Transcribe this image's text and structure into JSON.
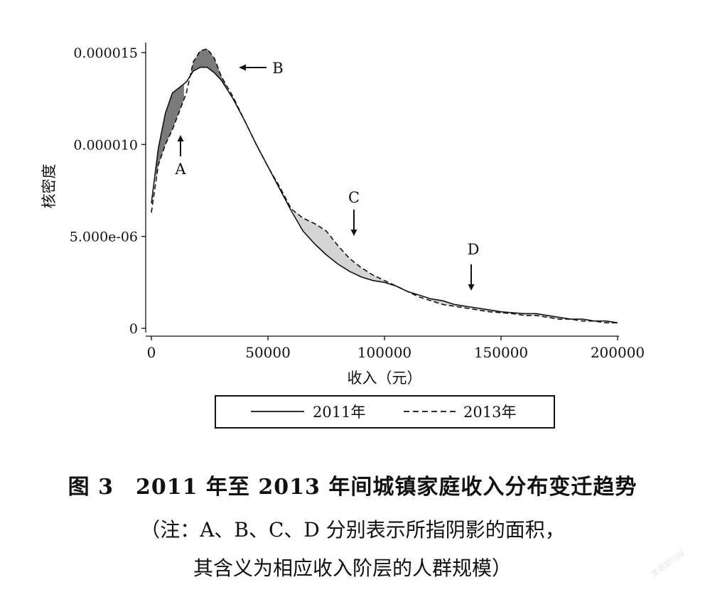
{
  "chart_data": {
    "type": "line",
    "xlabel": "收入（元）",
    "ylabel": "核密度",
    "xlim": [
      0,
      200000
    ],
    "ylim": [
      0,
      1.5e-05
    ],
    "x_ticks": [
      0,
      50000,
      100000,
      150000,
      200000
    ],
    "x_tick_labels": [
      "0",
      "50000",
      "100000",
      "150000",
      "200000"
    ],
    "y_ticks": [
      0,
      5e-06,
      1e-05,
      1.5e-05
    ],
    "y_tick_labels": [
      "0",
      "5.000e-06",
      "0.000010",
      "0.000015"
    ],
    "grid": false,
    "legend_position": "bottom",
    "series": [
      {
        "name": "2011年",
        "style": "solid",
        "x": [
          0,
          3000,
          6000,
          9000,
          12000,
          15000,
          18000,
          21000,
          24000,
          27000,
          30000,
          35000,
          40000,
          45000,
          50000,
          55000,
          60000,
          65000,
          70000,
          75000,
          80000,
          85000,
          90000,
          95000,
          100000,
          105000,
          110000,
          115000,
          120000,
          125000,
          130000,
          135000,
          140000,
          145000,
          150000,
          155000,
          160000,
          165000,
          170000,
          175000,
          180000,
          185000,
          190000,
          195000,
          200000
        ],
        "y": [
          6.8e-06,
          9.8e-06,
          1.17e-05,
          1.28e-05,
          1.31e-05,
          1.34e-05,
          1.4e-05,
          1.42e-05,
          1.42e-05,
          1.39e-05,
          1.35e-05,
          1.25e-05,
          1.13e-05,
          1e-05,
          8.8e-06,
          7.6e-06,
          6.4e-06,
          5.3e-06,
          4.6e-06,
          4e-06,
          3.5e-06,
          3.1e-06,
          2.8e-06,
          2.6e-06,
          2.5e-06,
          2.3e-06,
          2e-06,
          1.8e-06,
          1.6e-06,
          1.5e-06,
          1.3e-06,
          1.2e-06,
          1.1e-06,
          1e-06,
          9e-07,
          8.5e-07,
          8e-07,
          8e-07,
          7e-07,
          6e-07,
          5e-07,
          5e-07,
          4e-07,
          4e-07,
          3e-07
        ]
      },
      {
        "name": "2013年",
        "style": "dashed",
        "x": [
          0,
          3000,
          6000,
          9000,
          12000,
          15000,
          18000,
          21000,
          24000,
          27000,
          30000,
          35000,
          40000,
          45000,
          50000,
          55000,
          60000,
          65000,
          70000,
          75000,
          80000,
          85000,
          90000,
          95000,
          100000,
          105000,
          110000,
          115000,
          120000,
          125000,
          130000,
          135000,
          140000,
          145000,
          150000,
          155000,
          160000,
          165000,
          170000,
          175000,
          180000,
          185000,
          190000,
          195000,
          200000
        ],
        "y": [
          6.3e-06,
          8.9e-06,
          1e-05,
          1.08e-05,
          1.18e-05,
          1.28e-05,
          1.45e-05,
          1.51e-05,
          1.52e-05,
          1.47e-05,
          1.37e-05,
          1.26e-05,
          1.13e-05,
          1e-05,
          8.8e-06,
          7.7e-06,
          6.5e-06,
          6e-06,
          5.7e-06,
          5.3e-06,
          4.5e-06,
          3.8e-06,
          3.3e-06,
          2.9e-06,
          2.6e-06,
          2.3e-06,
          2e-06,
          1.7e-06,
          1.5e-06,
          1.3e-06,
          1.2e-06,
          1.1e-06,
          1e-06,
          9e-07,
          8.5e-07,
          8e-07,
          7e-07,
          7e-07,
          6e-07,
          5e-07,
          5e-07,
          4e-07,
          4e-07,
          3e-07,
          3e-07
        ]
      }
    ],
    "shaded_regions": [
      {
        "label": "A",
        "x_range": [
          2000,
          14000
        ],
        "fill": "#7a7a7a"
      },
      {
        "label": "B",
        "x_range": [
          17000,
          32000
        ],
        "fill": "#7a7a7a"
      },
      {
        "label": "C",
        "x_range": [
          61000,
          100000
        ],
        "fill": "#d4d4d4"
      },
      {
        "label": "D",
        "x_range": [
          120000,
          178000
        ],
        "fill": "#d4d4d4"
      }
    ],
    "annotations": [
      {
        "label": "A",
        "arrow": "up"
      },
      {
        "label": "B",
        "arrow": "left"
      },
      {
        "label": "C",
        "arrow": "down"
      },
      {
        "label": "D",
        "arrow": "down"
      }
    ]
  },
  "caption": {
    "title": "图 3　2011 年至 2013 年间城镇家庭收入分布变迁趋势",
    "note_line1": "（注：A、B、C、D 分别表示所指阴影的面积，",
    "note_line2": "其含义为相应收入阶层的人群规模）"
  },
  "watermark": "龙源期刊网"
}
